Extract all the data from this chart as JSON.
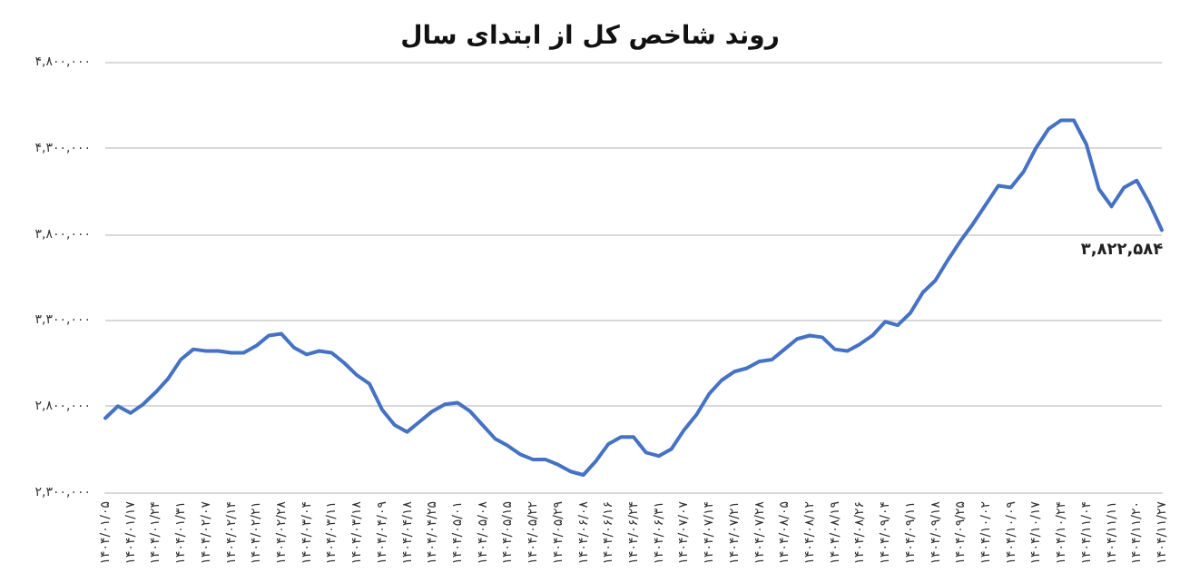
{
  "chart_data": {
    "type": "line",
    "title": "روند شاخص کل از ابتدای سال",
    "categories": [
      "۱۴۰۴/۰۱/۰۵",
      null,
      "۱۴۰۴/۰۱/۱۷",
      null,
      "۱۴۰۴/۰۱/۲۴",
      null,
      "۱۴۰۴/۰۱/۳۱",
      null,
      "۱۴۰۴/۰۲/۰۷",
      null,
      "۱۴۰۴/۰۲/۱۴",
      null,
      "۱۴۰۴/۰۲/۲۱",
      null,
      "۱۴۰۴/۰۲/۲۸",
      null,
      "۱۴۰۴/۰۳/۰۴",
      null,
      "۱۴۰۴/۰۳/۱۱",
      null,
      "۱۴۰۴/۰۳/۱۸",
      null,
      "۱۴۰۴/۰۴/۰۹",
      null,
      "۱۴۰۴/۰۴/۱۸",
      null,
      "۱۴۰۴/۰۴/۲۵",
      null,
      "۱۴۰۴/۰۵/۰۱",
      null,
      "۱۴۰۴/۰۵/۰۸",
      null,
      "۱۴۰۴/۰۵/۱۵",
      null,
      "۱۴۰۴/۰۵/۲۲",
      null,
      "۱۴۰۴/۰۵/۲۹",
      null,
      "۱۴۰۴/۰۶/۰۸",
      null,
      "۱۴۰۴/۰۶/۱۶",
      null,
      "۱۴۰۴/۰۶/۲۴",
      null,
      "۱۴۰۴/۰۶/۳۱",
      null,
      "۱۴۰۴/۰۷/۰۷",
      null,
      "۱۴۰۴/۰۷/۱۴",
      null,
      "۱۴۰۴/۰۷/۲۱",
      null,
      "۱۴۰۴/۰۷/۲۸",
      null,
      "۱۴۰۴/۰۸/۰۵",
      null,
      "۱۴۰۴/۰۸/۱۲",
      null,
      "۱۴۰۴/۰۸/۱۹",
      null,
      "۱۴۰۴/۰۸/۲۶",
      null,
      "۱۴۰۴/۰۹/۰۴",
      null,
      "۱۴۰۴/۰۹/۱۱",
      null,
      "۱۴۰۴/۰۹/۱۸",
      null,
      "۱۴۰۴/۰۹/۲۵",
      null,
      "۱۴۰۴/۱۰/۰۲",
      null,
      "۱۴۰۴/۱۰/۰۹",
      null,
      "۱۴۰۴/۱۰/۱۷",
      null,
      "۱۴۰۴/۱۰/۲۴",
      null,
      "۱۴۰۴/۱۱/۰۴",
      null,
      "۱۴۰۴/۱۱/۱۱",
      null,
      "۱۴۰۴/۱۱/۲۰",
      null,
      "۱۴۰۴/۱۱/۲۷"
    ],
    "series": [
      {
        "color": "#4472c4",
        "values": [
          2730000,
          2800000,
          2760000,
          2810000,
          2880000,
          2960000,
          3070000,
          3130000,
          3120000,
          3120000,
          3110000,
          3110000,
          3150000,
          3210000,
          3220000,
          3140000,
          3100000,
          3120000,
          3110000,
          3050000,
          2980000,
          2930000,
          2780000,
          2690000,
          2650000,
          2710000,
          2770000,
          2810000,
          2820000,
          2770000,
          2690000,
          2610000,
          2570000,
          2520000,
          2490000,
          2490000,
          2460000,
          2420000,
          2400000,
          2480000,
          2580000,
          2620000,
          2620000,
          2530000,
          2510000,
          2550000,
          2660000,
          2750000,
          2870000,
          2950000,
          3000000,
          3020000,
          3060000,
          3070000,
          3130000,
          3190000,
          3210000,
          3200000,
          3130000,
          3120000,
          3160000,
          3210000,
          3290000,
          3270000,
          3340000,
          3460000,
          3530000,
          3650000,
          3760000,
          3860000,
          3970000,
          4080000,
          4070000,
          4160000,
          4300000,
          4410000,
          4460000,
          4460000,
          4320000,
          4060000,
          3960000,
          4070000,
          4110000,
          3980000,
          3822584
        ],
        "value_labels": [
          null,
          null,
          null,
          null,
          null,
          null,
          null,
          null,
          null,
          null,
          null,
          null,
          null,
          null,
          null,
          null,
          null,
          null,
          null,
          null,
          null,
          null,
          null,
          null,
          null,
          null,
          null,
          null,
          null,
          null,
          null,
          null,
          null,
          null,
          null,
          null,
          null,
          null,
          null,
          null,
          null,
          null,
          null,
          null,
          null,
          null,
          null,
          null,
          null,
          null,
          null,
          null,
          null,
          null,
          null,
          null,
          null,
          null,
          null,
          null,
          null,
          null,
          null,
          null,
          null,
          null,
          null,
          null,
          null,
          null,
          null,
          null,
          null,
          null,
          null,
          null,
          null,
          null,
          null,
          null,
          null,
          null,
          null,
          null,
          "۳,۸۲۲,۵۸۴"
        ]
      }
    ],
    "ylim": [
      2300000,
      4800000
    ],
    "yticks": [
      {
        "value": 2300000,
        "label": "۲,۳۰۰,۰۰۰"
      },
      {
        "value": 2800000,
        "label": "۲,۸۰۰,۰۰۰"
      },
      {
        "value": 3300000,
        "label": "۳,۳۰۰,۰۰۰"
      },
      {
        "value": 3800000,
        "label": "۳,۸۰۰,۰۰۰"
      },
      {
        "value": 4300000,
        "label": "۴,۳۰۰,۰۰۰"
      },
      {
        "value": 4800000,
        "label": "۴,۸۰۰,۰۰۰"
      }
    ],
    "grid": "y",
    "marker": "none",
    "line_style": "solid"
  }
}
